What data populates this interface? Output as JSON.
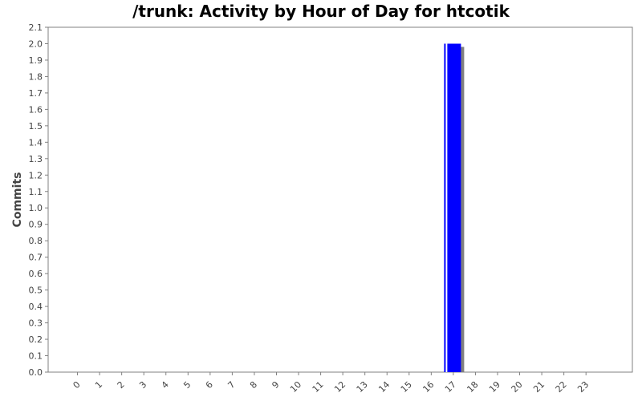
{
  "chart_data": {
    "type": "bar",
    "title": "/trunk: Activity by Hour of Day for htcotik",
    "xlabel": "",
    "ylabel": "Commits",
    "categories": [
      "0",
      "1",
      "2",
      "3",
      "4",
      "5",
      "6",
      "7",
      "8",
      "9",
      "10",
      "11",
      "12",
      "13",
      "14",
      "15",
      "16",
      "17",
      "18",
      "19",
      "20",
      "21",
      "22",
      "23"
    ],
    "values": [
      0,
      0,
      0,
      0,
      0,
      0,
      0,
      0,
      0,
      0,
      0,
      0,
      0,
      0,
      0,
      0,
      0,
      2,
      0,
      0,
      0,
      0,
      0,
      0
    ],
    "ylim": [
      0,
      2.1
    ],
    "yticks": [
      "0.0",
      "0.1",
      "0.2",
      "0.3",
      "0.4",
      "0.5",
      "0.6",
      "0.7",
      "0.8",
      "0.9",
      "1.0",
      "1.1",
      "1.2",
      "1.3",
      "1.4",
      "1.5",
      "1.6",
      "1.7",
      "1.8",
      "1.9",
      "2.0",
      "2.1"
    ],
    "grid": false,
    "legend": "none",
    "colors": {
      "bar": "#0000ff",
      "bar_shadow": "#808080",
      "axis": "#808080",
      "text": "#444444"
    }
  }
}
